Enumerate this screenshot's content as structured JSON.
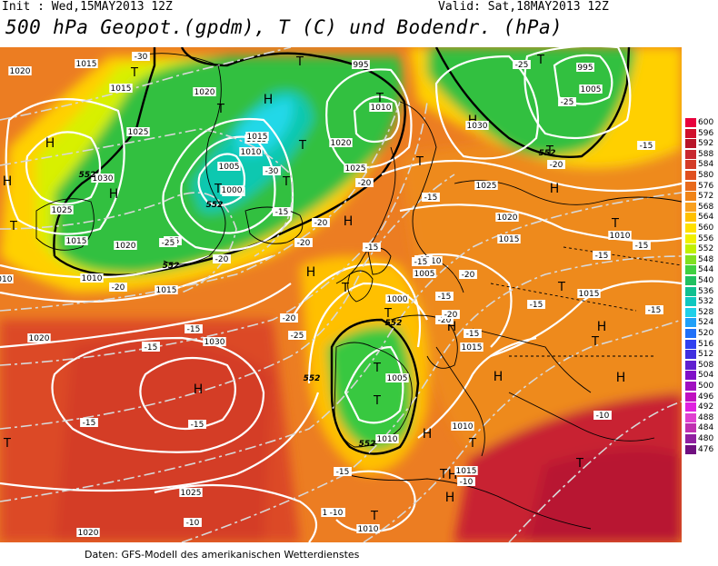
{
  "header": {
    "init": "Init : Wed,15MAY2013 12Z",
    "valid": "Valid: Sat,18MAY2013 12Z",
    "title": "500 hPa Geopot.(gpdm), T (C) und Bodendr. (hPa)"
  },
  "footer": "Daten: GFS-Modell des amerikanischen Wetterdienstes",
  "legend": {
    "values": [
      "600",
      "596",
      "592",
      "588",
      "584",
      "580",
      "576",
      "572",
      "568",
      "564",
      "560",
      "556",
      "552",
      "548",
      "544",
      "540",
      "536",
      "532",
      "528",
      "524",
      "520",
      "516",
      "512",
      "508",
      "504",
      "500",
      "496",
      "492",
      "488",
      "484",
      "480",
      "476"
    ],
    "colors": [
      "#e8003c",
      "#d0102c",
      "#b81428",
      "#c82830",
      "#d43c28",
      "#e05020",
      "#e86a1c",
      "#f08418",
      "#f8a020",
      "#ffc000",
      "#ffe000",
      "#f0f000",
      "#c0f000",
      "#80e020",
      "#40d040",
      "#20c060",
      "#10c090",
      "#10c8c0",
      "#20d0e8",
      "#20a0f8",
      "#2070f8",
      "#3040f0",
      "#4030e0",
      "#6020d0",
      "#8010c8",
      "#a010c0",
      "#c010c0",
      "#e020e0",
      "#e040d0",
      "#c030b0",
      "#9020a0",
      "#701080"
    ]
  },
  "map": {
    "highs": [
      "H",
      "H",
      "H",
      "H",
      "H",
      "H",
      "H",
      "H",
      "H",
      "H",
      "H",
      "H",
      "H",
      "H",
      "H",
      "H"
    ],
    "lows": [
      "T",
      "T",
      "T",
      "T",
      "T",
      "T",
      "T",
      "T",
      "T",
      "T",
      "T",
      "T",
      "T",
      "T",
      "T",
      "T",
      "T",
      "T",
      "T",
      "T",
      "T",
      "T",
      "T"
    ],
    "isobar_labels": [
      "1015",
      "1015",
      "1020",
      "1020",
      "1015",
      "1025",
      "1030",
      "1025",
      "1015",
      "1020",
      "1015",
      "1010",
      "1005",
      "1000",
      "995",
      "1010",
      "1015",
      "1020",
      "1025",
      "995",
      "1005",
      "1030",
      "1025",
      "1020",
      "1015",
      "1010",
      "1015",
      "1010",
      "1005",
      "1000",
      "1015",
      "1005",
      "1010",
      "1010",
      "1015",
      "1010",
      "1020",
      "1030",
      "1025",
      "1020",
      "1010",
      "1015",
      "1000",
      "1010"
    ],
    "temp_labels": [
      "-30",
      "-30",
      "-25",
      "-20",
      "-25",
      "-20",
      "-20",
      "-20",
      "-15",
      "-20",
      "-25",
      "-25",
      "-20",
      "-15",
      "-25",
      "-20",
      "-15",
      "-15",
      "-15",
      "-15",
      "-15",
      "-15",
      "-20",
      "-20",
      "-15",
      "-15",
      "-20",
      "-15",
      "-15",
      "-15",
      "-10",
      "-15",
      "-15",
      "-10",
      "-15",
      "-10",
      "-10",
      "-15",
      "-15"
    ],
    "gpdm_labels": [
      "552",
      "552",
      "552",
      "552",
      "552",
      "552",
      "552"
    ]
  }
}
